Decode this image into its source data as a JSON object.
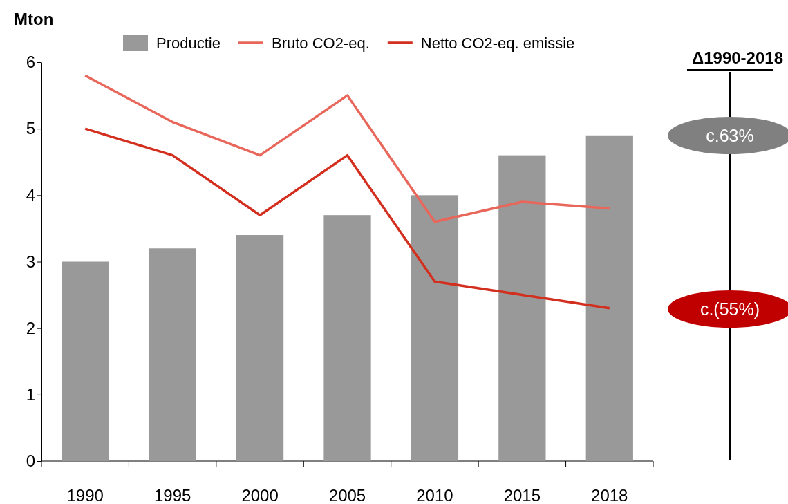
{
  "chart_data": {
    "type": "bar",
    "ylabel": "Mton",
    "categories": [
      "1990",
      "1995",
      "2000",
      "2005",
      "2010",
      "2015",
      "2018"
    ],
    "series": [
      {
        "name": "Productie",
        "color": "#999999",
        "values": [
          3.0,
          3.2,
          3.4,
          3.7,
          4.0,
          4.6,
          4.9
        ]
      },
      {
        "name": "Bruto CO2-eq.",
        "type": "line",
        "color": "#e8675a",
        "values": [
          5.8,
          5.1,
          4.6,
          5.5,
          3.6,
          3.9,
          3.8
        ]
      },
      {
        "name": "Netto CO2-eq. emissie",
        "type": "line",
        "color": "#d32f1f",
        "values": [
          5.0,
          4.6,
          3.7,
          4.6,
          2.7,
          2.5,
          2.3
        ]
      }
    ],
    "ylim": [
      0,
      6
    ],
    "yticks": [
      0,
      1,
      2,
      3,
      4,
      5,
      6
    ],
    "grid": false,
    "legend": "top",
    "marker": "none",
    "line_style": "solid",
    "annotations": [
      "Δ1990-2018",
      "c.63%",
      "c.(55%)"
    ]
  }
}
